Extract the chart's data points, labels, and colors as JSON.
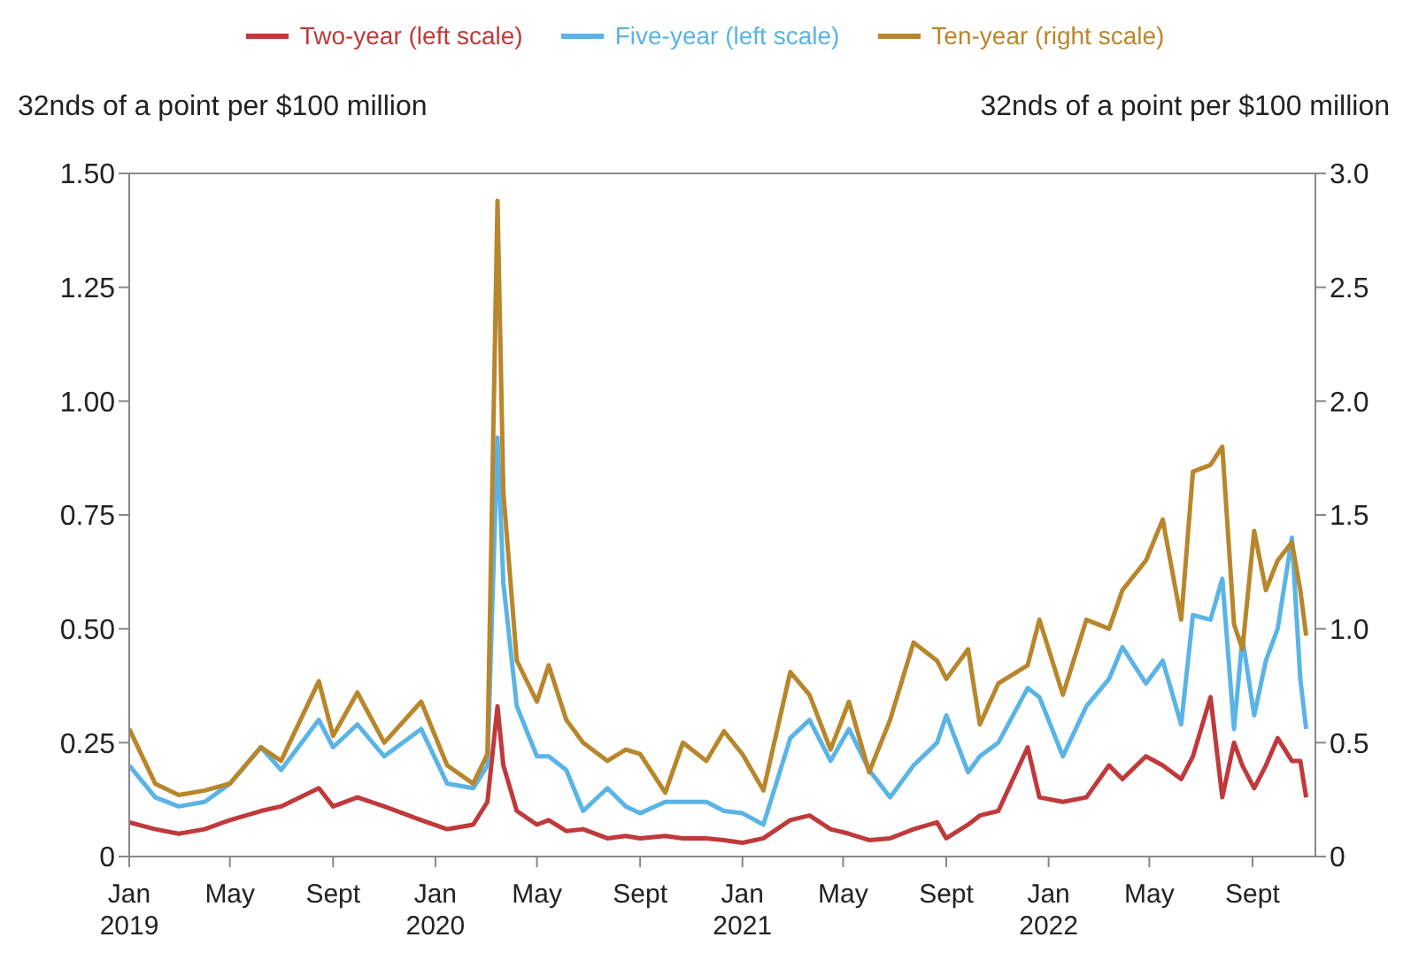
{
  "chart_data": {
    "type": "line",
    "ylabel": "32nds of a point per $100 million",
    "y2label": "32nds of a point per $100 million",
    "x": [
      "2019-01-01",
      "2019-02-01",
      "2019-03-01",
      "2019-04-01",
      "2019-05-01",
      "2019-06-07",
      "2019-07-01",
      "2019-08-15",
      "2019-09-01",
      "2019-09-30",
      "2019-11-01",
      "2019-12-15",
      "2020-01-15",
      "2020-02-15",
      "2020-03-03",
      "2020-03-15",
      "2020-03-22",
      "2020-04-07",
      "2020-05-01",
      "2020-05-15",
      "2020-06-05",
      "2020-06-25",
      "2020-07-24",
      "2020-08-15",
      "2020-09-01",
      "2020-10-01",
      "2020-10-22",
      "2020-11-19",
      "2020-12-10",
      "2021-01-01",
      "2021-01-26",
      "2021-02-27",
      "2021-03-22",
      "2021-04-16",
      "2021-05-08",
      "2021-06-01",
      "2021-06-26",
      "2021-07-24",
      "2021-08-21",
      "2021-09-01",
      "2021-09-27",
      "2021-10-11",
      "2021-11-02",
      "2021-12-07",
      "2021-12-21",
      "2022-01-18",
      "2022-02-15",
      "2022-03-14",
      "2022-03-30",
      "2022-04-27",
      "2022-05-17",
      "2022-06-08",
      "2022-06-22",
      "2022-07-13",
      "2022-07-27",
      "2022-08-10",
      "2022-08-20",
      "2022-09-03",
      "2022-09-17",
      "2022-10-01",
      "2022-10-18",
      "2022-10-28",
      "2022-11-04"
    ],
    "series": [
      {
        "name": "Two-year (left scale)",
        "color": "#c0393b",
        "values": [
          0.075,
          0.06,
          0.05,
          0.06,
          0.08,
          0.1,
          0.11,
          0.15,
          0.11,
          0.13,
          0.11,
          0.08,
          0.06,
          0.07,
          0.12,
          0.33,
          0.2,
          0.1,
          0.07,
          0.08,
          0.056,
          0.06,
          0.04,
          0.045,
          0.04,
          0.045,
          0.04,
          0.04,
          0.036,
          0.03,
          0.04,
          0.08,
          0.09,
          0.06,
          0.05,
          0.036,
          0.04,
          0.06,
          0.075,
          0.04,
          0.07,
          0.09,
          0.1,
          0.24,
          0.13,
          0.12,
          0.13,
          0.2,
          0.17,
          0.22,
          0.2,
          0.17,
          0.22,
          0.35,
          0.13,
          0.25,
          0.2,
          0.15,
          0.2,
          0.26,
          0.21,
          0.21,
          0.13
        ]
      },
      {
        "name": "Five-year (left scale)",
        "color": "#5ab4e6",
        "values": [
          0.2,
          0.13,
          0.11,
          0.12,
          0.16,
          0.24,
          0.19,
          0.3,
          0.24,
          0.29,
          0.22,
          0.28,
          0.16,
          0.15,
          0.2,
          0.92,
          0.6,
          0.33,
          0.22,
          0.22,
          0.19,
          0.1,
          0.15,
          0.11,
          0.095,
          0.12,
          0.12,
          0.12,
          0.1,
          0.095,
          0.07,
          0.26,
          0.3,
          0.21,
          0.28,
          0.19,
          0.13,
          0.2,
          0.25,
          0.31,
          0.185,
          0.22,
          0.25,
          0.37,
          0.35,
          0.22,
          0.33,
          0.39,
          0.46,
          0.38,
          0.43,
          0.29,
          0.53,
          0.52,
          0.61,
          0.28,
          0.48,
          0.31,
          0.43,
          0.5,
          0.7,
          0.39,
          0.28
        ]
      },
      {
        "name": "Ten-year (right scale)",
        "color": "#b8862b",
        "axis": "y2",
        "values": [
          0.56,
          0.32,
          0.27,
          0.29,
          0.32,
          0.48,
          0.42,
          0.77,
          0.53,
          0.72,
          0.5,
          0.68,
          0.4,
          0.32,
          0.45,
          2.88,
          1.6,
          0.86,
          0.68,
          0.84,
          0.6,
          0.5,
          0.42,
          0.47,
          0.45,
          0.28,
          0.5,
          0.42,
          0.55,
          0.45,
          0.29,
          0.81,
          0.71,
          0.47,
          0.68,
          0.37,
          0.6,
          0.94,
          0.86,
          0.78,
          0.91,
          0.58,
          0.76,
          0.84,
          1.04,
          0.71,
          1.04,
          1.0,
          1.17,
          1.3,
          1.48,
          1.04,
          1.69,
          1.72,
          1.8,
          1.02,
          0.91,
          1.43,
          1.17,
          1.3,
          1.38,
          1.17,
          0.97
        ]
      }
    ],
    "xlim": [
      "2019-01-01",
      "2022-11-15"
    ],
    "xticks": [
      {
        "value": "2019-01-01",
        "label": "Jan\n2019"
      },
      {
        "value": "2019-05-01",
        "label": "May"
      },
      {
        "value": "2019-09-01",
        "label": "Sept"
      },
      {
        "value": "2020-01-01",
        "label": "Jan\n2020"
      },
      {
        "value": "2020-05-01",
        "label": "May"
      },
      {
        "value": "2020-09-01",
        "label": "Sept"
      },
      {
        "value": "2021-01-01",
        "label": "Jan\n2021"
      },
      {
        "value": "2021-05-01",
        "label": "May"
      },
      {
        "value": "2021-09-01",
        "label": "Sept"
      },
      {
        "value": "2022-01-01",
        "label": "Jan\n2022"
      },
      {
        "value": "2022-05-01",
        "label": "May"
      },
      {
        "value": "2022-09-01",
        "label": "Sept"
      }
    ],
    "ylim": [
      0,
      1.5
    ],
    "yticks": [
      0,
      0.25,
      {
        "value": 0.5,
        "label": "0.50"
      },
      0.75,
      {
        "value": 1,
        "label": "1.00"
      },
      1.25,
      {
        "value": 1.5,
        "label": "1.50"
      }
    ],
    "y2lim": [
      0,
      3
    ],
    "y2ticks": [
      0,
      0.5,
      {
        "value": 1,
        "label": "1.0"
      },
      1.5,
      {
        "value": 2,
        "label": "2.0"
      },
      2.5,
      {
        "value": 3,
        "label": "3.0"
      }
    ],
    "grid": false,
    "legend": "top",
    "line_style": "solid",
    "marker": "none"
  }
}
